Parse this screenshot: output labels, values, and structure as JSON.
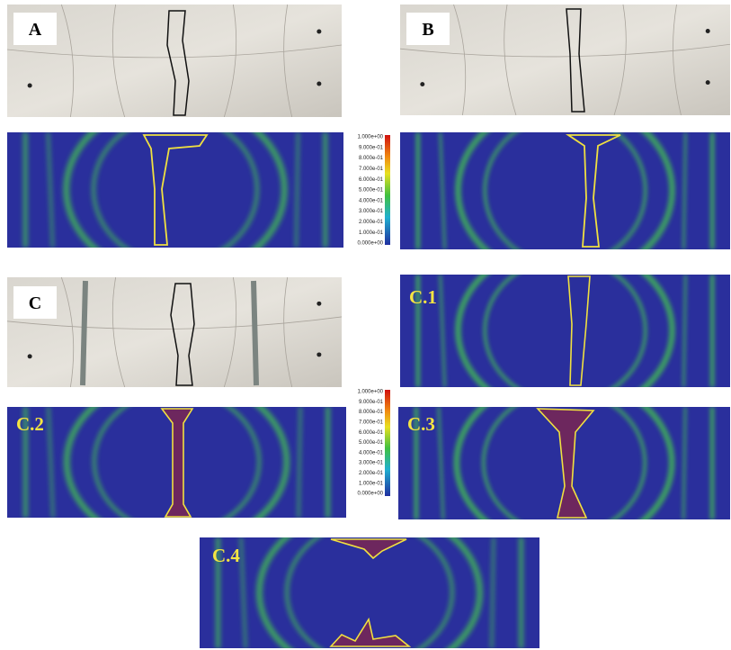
{
  "panels": [
    {
      "label": "A"
    },
    {
      "label": "B"
    },
    {
      "label": "C"
    },
    {
      "label": "C.1"
    },
    {
      "label": "C.2"
    },
    {
      "label": "C.3"
    },
    {
      "label": "C.4"
    }
  ],
  "colorbars": [
    {
      "labels": [
        "1.000e+00",
        "9.000e-01",
        "8.000e-01",
        "7.000e-01",
        "6.000e-01",
        "5.000e-01",
        "4.000e-01",
        "3.000e-01",
        "2.000e-01",
        "1.000e-01",
        "0.000e+00"
      ]
    },
    {
      "labels": [
        "1.000e+00",
        "9.000e-01",
        "8.000e-01",
        "7.000e-01",
        "6.000e-01",
        "5.000e-01",
        "4.000e-01",
        "3.000e-01",
        "2.000e-01",
        "1.000e-01",
        "0.000e+00"
      ]
    }
  ]
}
